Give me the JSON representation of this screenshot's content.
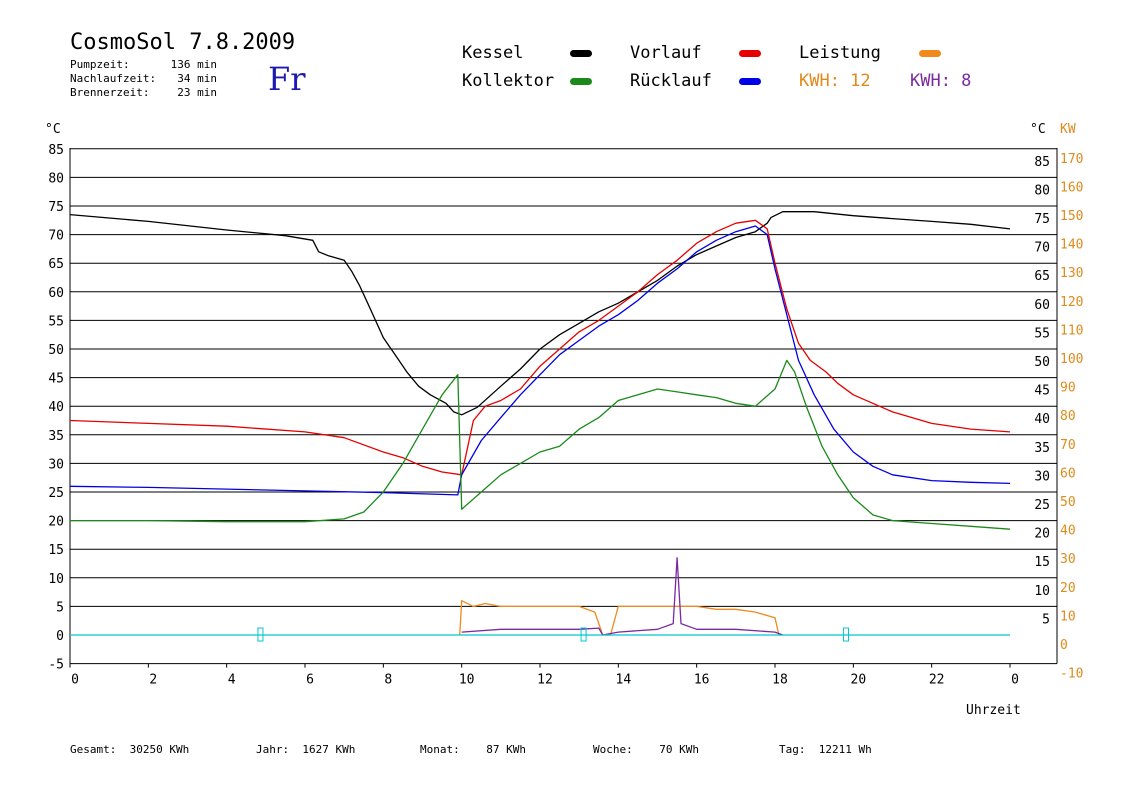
{
  "header": {
    "title": "CosmoSol 7.8.2009",
    "day": "Fr",
    "info": [
      {
        "label": "Pumpzeit:",
        "value": "136 min"
      },
      {
        "label": "Nachlaufzeit:",
        "value": "34 min"
      },
      {
        "label": "Brennerzeit:",
        "value": "23 min"
      }
    ]
  },
  "legend": {
    "kessel": {
      "label": "Kessel",
      "color": "#000000"
    },
    "vorlauf": {
      "label": "Vorlauf",
      "color": "#e60000"
    },
    "leistung": {
      "label": "Leistung",
      "color": "#f08a1c"
    },
    "kollektor": {
      "label": "Kollektor",
      "color": "#1b8a1b"
    },
    "ruecklauf": {
      "label": "Rücklauf",
      "color": "#0000e6"
    },
    "kwh_orange": "KWH: 12",
    "kwh_purple": "KWH: 8",
    "orange_color": "#e08a1c",
    "purple_color": "#7a2aa0"
  },
  "footer": {
    "gesamt": "Gesamt:  30250 KWh",
    "jahr": "Jahr:  1627 KWh",
    "monat": "Monat:    87 KWh",
    "woche": "Woche:    70 KWh",
    "tag": "Tag:  12211 Wh"
  },
  "chart_data": {
    "type": "line",
    "xlabel": "Uhrzeit",
    "left_unit": "°C",
    "right_unit_c": "°C",
    "right_unit_kw": "KW",
    "xlim": [
      0,
      24
    ],
    "ylim": [
      -5,
      87
    ],
    "x_ticks": [
      "0",
      "2",
      "4",
      "6",
      "8",
      "10",
      "12",
      "14",
      "16",
      "18",
      "20",
      "22",
      "0"
    ],
    "y_ticks_left": [
      "85",
      "80",
      "75",
      "70",
      "65",
      "60",
      "55",
      "50",
      "45",
      "40",
      "35",
      "30",
      "25",
      "20",
      "15",
      "10",
      "5",
      "0",
      "-5"
    ],
    "y_ticks_right_c": [
      "85",
      "80",
      "75",
      "70",
      "65",
      "60",
      "55",
      "50",
      "45",
      "40",
      "35",
      "30",
      "25",
      "20",
      "15",
      "10",
      "5"
    ],
    "y_ticks_right_kw": [
      "170",
      "160",
      "150",
      "140",
      "130",
      "120",
      "110",
      "100",
      "90",
      "80",
      "70",
      "60",
      "50",
      "40",
      "30",
      "20",
      "10",
      "0",
      "-10"
    ],
    "series": [
      {
        "name": "Kessel",
        "color": "#000000",
        "x": [
          0,
          2,
          4,
          5.5,
          6.2,
          6.35,
          6.6,
          7.0,
          7.2,
          7.4,
          7.6,
          7.8,
          8.0,
          8.3,
          8.6,
          8.9,
          9.2,
          9.6,
          9.8,
          10.0,
          10.4,
          11.0,
          11.5,
          12.0,
          12.5,
          13.0,
          13.5,
          14.0,
          14.5,
          15.0,
          15.5,
          16.0,
          16.5,
          17.0,
          17.5,
          17.8,
          17.9,
          18.2,
          19,
          20,
          21,
          22,
          23,
          24
        ],
        "y": [
          73.5,
          72.3,
          70.8,
          69.8,
          69,
          67,
          66.3,
          65.5,
          63.5,
          61,
          58,
          55,
          52,
          49,
          46,
          43.5,
          42,
          40.5,
          39,
          38.5,
          39.8,
          43.5,
          46.5,
          50,
          52.5,
          54.5,
          56.5,
          58,
          60,
          62,
          64.5,
          66.5,
          68,
          69.5,
          70.5,
          72,
          73,
          74,
          74,
          73.3,
          72.8,
          72.3,
          71.8,
          71
        ]
      },
      {
        "name": "Vorlauf",
        "color": "#e60000",
        "x": [
          0,
          2,
          4,
          6,
          7,
          8,
          8.5,
          9,
          9.5,
          10.0,
          10.3,
          10.6,
          11.0,
          11.5,
          12.0,
          12.5,
          13.0,
          13.5,
          14.0,
          14.5,
          15.0,
          15.5,
          16.0,
          16.5,
          17.0,
          17.5,
          17.8,
          18.0,
          18.3,
          18.6,
          18.9,
          19.3,
          19.6,
          20,
          21,
          22,
          23,
          24
        ],
        "y": [
          37.5,
          37,
          36.5,
          35.5,
          34.5,
          32,
          31,
          29.5,
          28.5,
          28,
          37.5,
          40,
          41,
          43,
          47,
          50,
          53,
          55,
          57.5,
          60,
          63,
          65.5,
          68.5,
          70.5,
          72,
          72.5,
          71,
          65,
          57,
          51,
          48,
          46,
          44,
          42,
          39,
          37,
          36,
          35.5
        ]
      },
      {
        "name": "Rücklauf",
        "color": "#0000e6",
        "x": [
          0,
          2,
          4,
          6,
          8,
          9.9,
          10.0,
          10.5,
          11.0,
          11.5,
          12.0,
          12.5,
          13.0,
          13.5,
          14.0,
          14.5,
          15.0,
          15.5,
          16.0,
          16.5,
          17.0,
          17.5,
          17.8,
          18.0,
          18.3,
          18.6,
          19.0,
          19.5,
          20,
          20.5,
          21,
          22,
          23,
          24
        ],
        "y": [
          26,
          25.8,
          25.5,
          25.2,
          24.9,
          24.5,
          28,
          34,
          38,
          42,
          45.5,
          49,
          51.5,
          54,
          56,
          58.5,
          61.5,
          64,
          67,
          69,
          70.5,
          71.5,
          70,
          64,
          56,
          48,
          42,
          36,
          32,
          29.5,
          28,
          27,
          26.7,
          26.5
        ]
      },
      {
        "name": "Kollektor",
        "color": "#1b8a1b",
        "x": [
          0,
          2,
          4,
          5,
          6,
          7,
          7.5,
          8,
          8.5,
          9,
          9.5,
          9.9,
          10.0,
          10.5,
          11.0,
          11.5,
          12.0,
          12.5,
          13.0,
          13.5,
          14.0,
          14.5,
          15.0,
          15.5,
          16.0,
          16.5,
          17.0,
          17.5,
          18.0,
          18.3,
          18.5,
          18.8,
          19.2,
          19.6,
          20,
          20.5,
          21,
          22,
          23,
          24
        ],
        "y": [
          20,
          20,
          19.8,
          19.8,
          19.8,
          20.3,
          21.5,
          25,
          30,
          36,
          42,
          45.5,
          22,
          25,
          28,
          30,
          32,
          33,
          36,
          38,
          41,
          42,
          43,
          42.5,
          42,
          41.5,
          40.5,
          40,
          43,
          48,
          46,
          40,
          33,
          28,
          24,
          21,
          20,
          19.5,
          19,
          18.5
        ]
      },
      {
        "name": "Leistung",
        "color": "#f08a1c",
        "x": [
          9.95,
          10.0,
          10.3,
          10.6,
          11.0,
          11.5,
          12.0,
          12.5,
          13.0,
          13.4,
          13.6,
          13.8,
          14.0,
          14.5,
          15.0,
          15.5,
          16.0,
          16.5,
          17.0,
          17.5,
          18.0,
          18.1,
          18.2
        ],
        "y": [
          0,
          6,
          5,
          5.5,
          5,
          5,
          5,
          5,
          5,
          4,
          0,
          0,
          5,
          5,
          5,
          5,
          5,
          4.5,
          4.5,
          4,
          3,
          0,
          0
        ]
      },
      {
        "name": "KWH",
        "color": "#7a2aa0",
        "x": [
          10.0,
          11.0,
          12.0,
          13.0,
          13.5,
          13.6,
          14.0,
          15.0,
          15.4,
          15.5,
          15.6,
          16.0,
          17.0,
          18.0,
          18.2
        ],
        "y": [
          0.5,
          1,
          1,
          1,
          1.2,
          0,
          0.5,
          1,
          2,
          13.5,
          2,
          1,
          1,
          0.5,
          0
        ]
      },
      {
        "name": "Pumpe",
        "color": "#00c8d0",
        "x": [
          0,
          24
        ],
        "y": [
          0,
          0
        ]
      }
    ]
  }
}
